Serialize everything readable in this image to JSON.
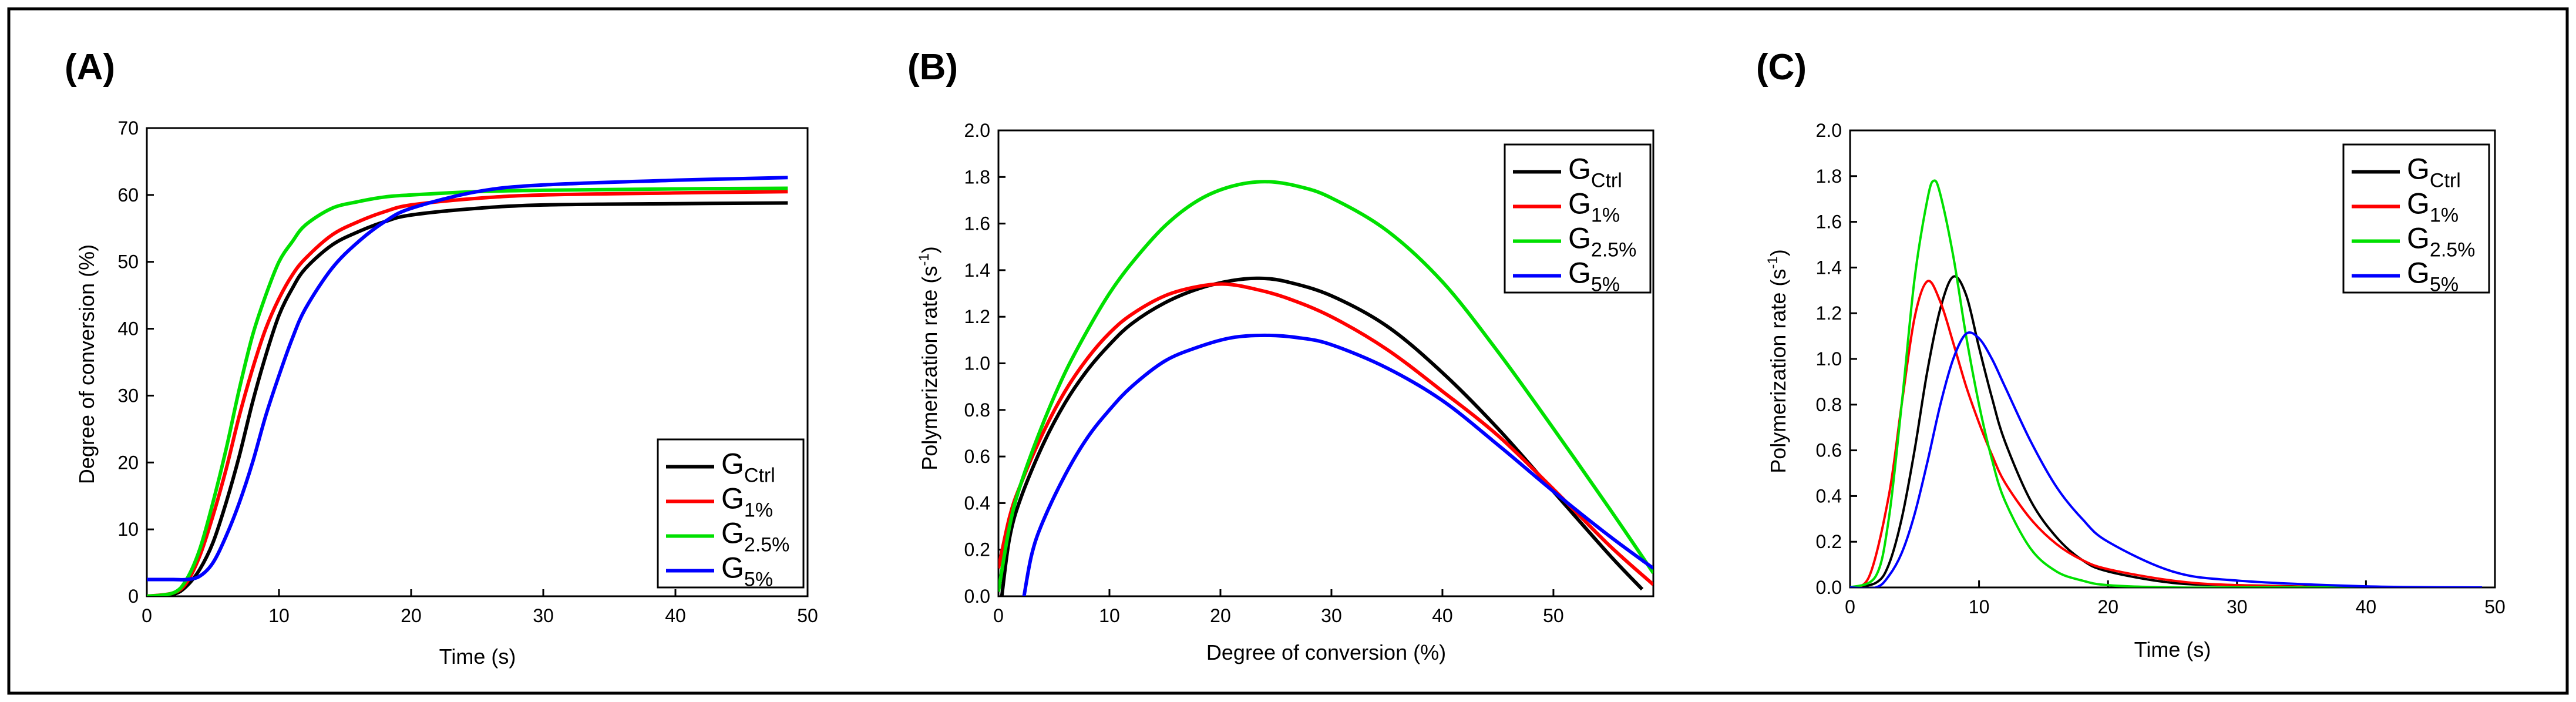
{
  "chart_data": [
    {
      "panel_label": "(A)",
      "type": "line",
      "xlabel": "Time (s)",
      "ylabel": "Degree of conversion (%)",
      "xlim": [
        0,
        50
      ],
      "ylim": [
        0,
        70
      ],
      "xticks": [
        "0",
        "10",
        "20",
        "30",
        "40",
        "50"
      ],
      "yticks": [
        "0",
        "10",
        "20",
        "30",
        "40",
        "50",
        "60",
        "70"
      ],
      "legend_position": "bottom-right",
      "series": [
        {
          "name": "G",
          "sub": "Ctrl",
          "color": "#000000",
          "points": [
            [
              0,
              0
            ],
            [
              2,
              0.3
            ],
            [
              3,
              1.5
            ],
            [
              4,
              4
            ],
            [
              5,
              8
            ],
            [
              6,
              14
            ],
            [
              7,
              21
            ],
            [
              8,
              29
            ],
            [
              9,
              36
            ],
            [
              10,
              42
            ],
            [
              11,
              46
            ],
            [
              12,
              49
            ],
            [
              14,
              52.5
            ],
            [
              16,
              54.5
            ],
            [
              18,
              56
            ],
            [
              20,
              57
            ],
            [
              25,
              58
            ],
            [
              30,
              58.5
            ],
            [
              40,
              58.7
            ],
            [
              48.5,
              58.8
            ]
          ]
        },
        {
          "name": "G",
          "sub": "1%",
          "color": "#ff0000",
          "points": [
            [
              0,
              0
            ],
            [
              2,
              0.5
            ],
            [
              3,
              2
            ],
            [
              4,
              6
            ],
            [
              5,
              12
            ],
            [
              6,
              19
            ],
            [
              7,
              27
            ],
            [
              8,
              34
            ],
            [
              9,
              40
            ],
            [
              10,
              44.5
            ],
            [
              11,
              48
            ],
            [
              12,
              50.5
            ],
            [
              14,
              54
            ],
            [
              16,
              56
            ],
            [
              18,
              57.5
            ],
            [
              20,
              58.5
            ],
            [
              25,
              59.5
            ],
            [
              30,
              60
            ],
            [
              40,
              60.3
            ],
            [
              48.5,
              60.5
            ]
          ]
        },
        {
          "name": "G",
          "sub": "2.5%",
          "color": "#00e000",
          "points": [
            [
              0,
              0
            ],
            [
              2,
              0.5
            ],
            [
              3,
              2.5
            ],
            [
              4,
              7
            ],
            [
              5,
              14
            ],
            [
              6,
              22
            ],
            [
              7,
              31
            ],
            [
              8,
              39
            ],
            [
              9,
              45
            ],
            [
              10,
              50
            ],
            [
              11,
              53
            ],
            [
              12,
              55.5
            ],
            [
              14,
              58
            ],
            [
              16,
              59
            ],
            [
              18,
              59.7
            ],
            [
              20,
              60
            ],
            [
              25,
              60.5
            ],
            [
              30,
              60.7
            ],
            [
              40,
              60.9
            ],
            [
              48.5,
              61
            ]
          ]
        },
        {
          "name": "G",
          "sub": "5%",
          "color": "#0000ff",
          "points": [
            [
              0,
              2.5
            ],
            [
              2,
              2.5
            ],
            [
              3,
              2.5
            ],
            [
              4,
              3
            ],
            [
              5,
              5
            ],
            [
              6,
              9
            ],
            [
              7,
              14
            ],
            [
              8,
              20
            ],
            [
              9,
              27
            ],
            [
              10,
              33
            ],
            [
              11,
              38.5
            ],
            [
              12,
              43
            ],
            [
              14,
              49
            ],
            [
              16,
              53
            ],
            [
              18,
              56
            ],
            [
              20,
              58
            ],
            [
              25,
              60.5
            ],
            [
              30,
              61.5
            ],
            [
              40,
              62.2
            ],
            [
              48.5,
              62.6
            ]
          ]
        }
      ]
    },
    {
      "panel_label": "(B)",
      "type": "line",
      "xlabel": "Degree of conversion (%)",
      "ylabel": "Polymerization rate (s",
      "ylabel_sup": "-1",
      "ylabel_end": ")",
      "xlim": [
        0,
        59
      ],
      "ylim": [
        0,
        2.0
      ],
      "xticks": [
        "0",
        "10",
        "20",
        "30",
        "40",
        "50"
      ],
      "yticks": [
        "0.0",
        "0.2",
        "0.4",
        "0.6",
        "0.8",
        "1.0",
        "1.2",
        "1.4",
        "1.6",
        "1.8",
        "2.0"
      ],
      "legend_position": "top-right",
      "series": [
        {
          "name": "G",
          "sub": "Ctrl",
          "color": "#000000",
          "points": [
            [
              0.3,
              0
            ],
            [
              1,
              0.25
            ],
            [
              2,
              0.42
            ],
            [
              4,
              0.65
            ],
            [
              6,
              0.83
            ],
            [
              8,
              0.97
            ],
            [
              10,
              1.08
            ],
            [
              12,
              1.17
            ],
            [
              15,
              1.26
            ],
            [
              18,
              1.32
            ],
            [
              21,
              1.355
            ],
            [
              23.5,
              1.365
            ],
            [
              26,
              1.35
            ],
            [
              30,
              1.29
            ],
            [
              35,
              1.16
            ],
            [
              40,
              0.96
            ],
            [
              45,
              0.72
            ],
            [
              50,
              0.45
            ],
            [
              55,
              0.18
            ],
            [
              58,
              0.03
            ]
          ]
        },
        {
          "name": "G",
          "sub": "1%",
          "color": "#ff0000",
          "points": [
            [
              0,
              0.12
            ],
            [
              1,
              0.34
            ],
            [
              2,
              0.48
            ],
            [
              4,
              0.7
            ],
            [
              6,
              0.88
            ],
            [
              8,
              1.02
            ],
            [
              10,
              1.13
            ],
            [
              12,
              1.21
            ],
            [
              15,
              1.29
            ],
            [
              18,
              1.33
            ],
            [
              20.5,
              1.34
            ],
            [
              23,
              1.32
            ],
            [
              26,
              1.28
            ],
            [
              30,
              1.2
            ],
            [
              35,
              1.06
            ],
            [
              40,
              0.88
            ],
            [
              45,
              0.69
            ],
            [
              50,
              0.46
            ],
            [
              55,
              0.22
            ],
            [
              59,
              0.05
            ]
          ]
        },
        {
          "name": "G",
          "sub": "2.5%",
          "color": "#00e000",
          "points": [
            [
              0,
              0.02
            ],
            [
              1,
              0.3
            ],
            [
              2,
              0.48
            ],
            [
              4,
              0.74
            ],
            [
              6,
              0.96
            ],
            [
              8,
              1.14
            ],
            [
              10,
              1.3
            ],
            [
              12,
              1.43
            ],
            [
              15,
              1.59
            ],
            [
              18,
              1.7
            ],
            [
              21,
              1.76
            ],
            [
              24,
              1.78
            ],
            [
              27,
              1.76
            ],
            [
              30,
              1.71
            ],
            [
              35,
              1.57
            ],
            [
              40,
              1.35
            ],
            [
              45,
              1.05
            ],
            [
              50,
              0.72
            ],
            [
              55,
              0.38
            ],
            [
              59,
              0.1
            ]
          ]
        },
        {
          "name": "G",
          "sub": "5%",
          "color": "#0000ff",
          "points": [
            [
              2.3,
              0
            ],
            [
              3,
              0.18
            ],
            [
              4,
              0.32
            ],
            [
              6,
              0.52
            ],
            [
              8,
              0.68
            ],
            [
              10,
              0.8
            ],
            [
              12,
              0.9
            ],
            [
              15,
              1.01
            ],
            [
              18,
              1.07
            ],
            [
              21,
              1.11
            ],
            [
              24,
              1.12
            ],
            [
              27,
              1.11
            ],
            [
              30,
              1.08
            ],
            [
              35,
              0.98
            ],
            [
              40,
              0.84
            ],
            [
              45,
              0.65
            ],
            [
              50,
              0.45
            ],
            [
              55,
              0.26
            ],
            [
              59,
              0.12
            ]
          ]
        }
      ]
    },
    {
      "panel_label": "(C)",
      "type": "line",
      "xlabel": "Time (s)",
      "ylabel": "Polymerization rate (s",
      "ylabel_sup": "-1",
      "ylabel_end": ")",
      "xlim": [
        0,
        50
      ],
      "ylim": [
        0,
        2.0
      ],
      "xticks": [
        "0",
        "10",
        "20",
        "30",
        "40",
        "50"
      ],
      "yticks": [
        "0.0",
        "0.2",
        "0.4",
        "0.6",
        "0.8",
        "1.0",
        "1.2",
        "1.4",
        "1.6",
        "1.8",
        "2.0"
      ],
      "legend_position": "top-right",
      "series": [
        {
          "name": "G",
          "sub": "Ctrl",
          "color": "#000000",
          "points": [
            [
              0,
              0
            ],
            [
              2,
              0.02
            ],
            [
              3,
              0.1
            ],
            [
              4,
              0.3
            ],
            [
              5,
              0.6
            ],
            [
              6,
              0.95
            ],
            [
              7,
              1.22
            ],
            [
              8,
              1.36
            ],
            [
              9,
              1.28
            ],
            [
              10,
              1.05
            ],
            [
              11,
              0.83
            ],
            [
              12,
              0.64
            ],
            [
              14,
              0.38
            ],
            [
              16,
              0.22
            ],
            [
              18,
              0.12
            ],
            [
              20,
              0.07
            ],
            [
              25,
              0.02
            ],
            [
              30,
              0.01
            ],
            [
              40,
              0
            ],
            [
              49,
              0
            ]
          ]
        },
        {
          "name": "G",
          "sub": "1%",
          "color": "#ff0000",
          "points": [
            [
              0,
              0
            ],
            [
              1.5,
              0.05
            ],
            [
              3,
              0.4
            ],
            [
              4,
              0.8
            ],
            [
              5,
              1.18
            ],
            [
              6,
              1.34
            ],
            [
              7,
              1.25
            ],
            [
              8,
              1.07
            ],
            [
              9,
              0.88
            ],
            [
              10,
              0.72
            ],
            [
              11,
              0.58
            ],
            [
              12,
              0.46
            ],
            [
              14,
              0.3
            ],
            [
              16,
              0.19
            ],
            [
              18,
              0.12
            ],
            [
              20,
              0.08
            ],
            [
              25,
              0.03
            ],
            [
              30,
              0.01
            ],
            [
              40,
              0
            ],
            [
              49,
              0
            ]
          ]
        },
        {
          "name": "G",
          "sub": "2.5%",
          "color": "#00e000",
          "points": [
            [
              0,
              0
            ],
            [
              2,
              0.05
            ],
            [
              3,
              0.3
            ],
            [
              4,
              0.8
            ],
            [
              5,
              1.35
            ],
            [
              6,
              1.7
            ],
            [
              6.5,
              1.78
            ],
            [
              7,
              1.72
            ],
            [
              8,
              1.45
            ],
            [
              9,
              1.1
            ],
            [
              10,
              0.8
            ],
            [
              11,
              0.56
            ],
            [
              12,
              0.38
            ],
            [
              14,
              0.17
            ],
            [
              16,
              0.07
            ],
            [
              18,
              0.03
            ],
            [
              20,
              0.01
            ],
            [
              25,
              0
            ],
            [
              30,
              0
            ],
            [
              49,
              0
            ]
          ]
        },
        {
          "name": "G",
          "sub": "5%",
          "color": "#0000ff",
          "points": [
            [
              0,
              0
            ],
            [
              2,
              0
            ],
            [
              3,
              0.05
            ],
            [
              4,
              0.15
            ],
            [
              5,
              0.32
            ],
            [
              6,
              0.55
            ],
            [
              7,
              0.8
            ],
            [
              8,
              1.0
            ],
            [
              9,
              1.11
            ],
            [
              10,
              1.09
            ],
            [
              11,
              1.0
            ],
            [
              12,
              0.88
            ],
            [
              14,
              0.64
            ],
            [
              16,
              0.44
            ],
            [
              18,
              0.3
            ],
            [
              20,
              0.2
            ],
            [
              25,
              0.07
            ],
            [
              30,
              0.03
            ],
            [
              40,
              0.005
            ],
            [
              49,
              0
            ]
          ]
        }
      ]
    }
  ]
}
